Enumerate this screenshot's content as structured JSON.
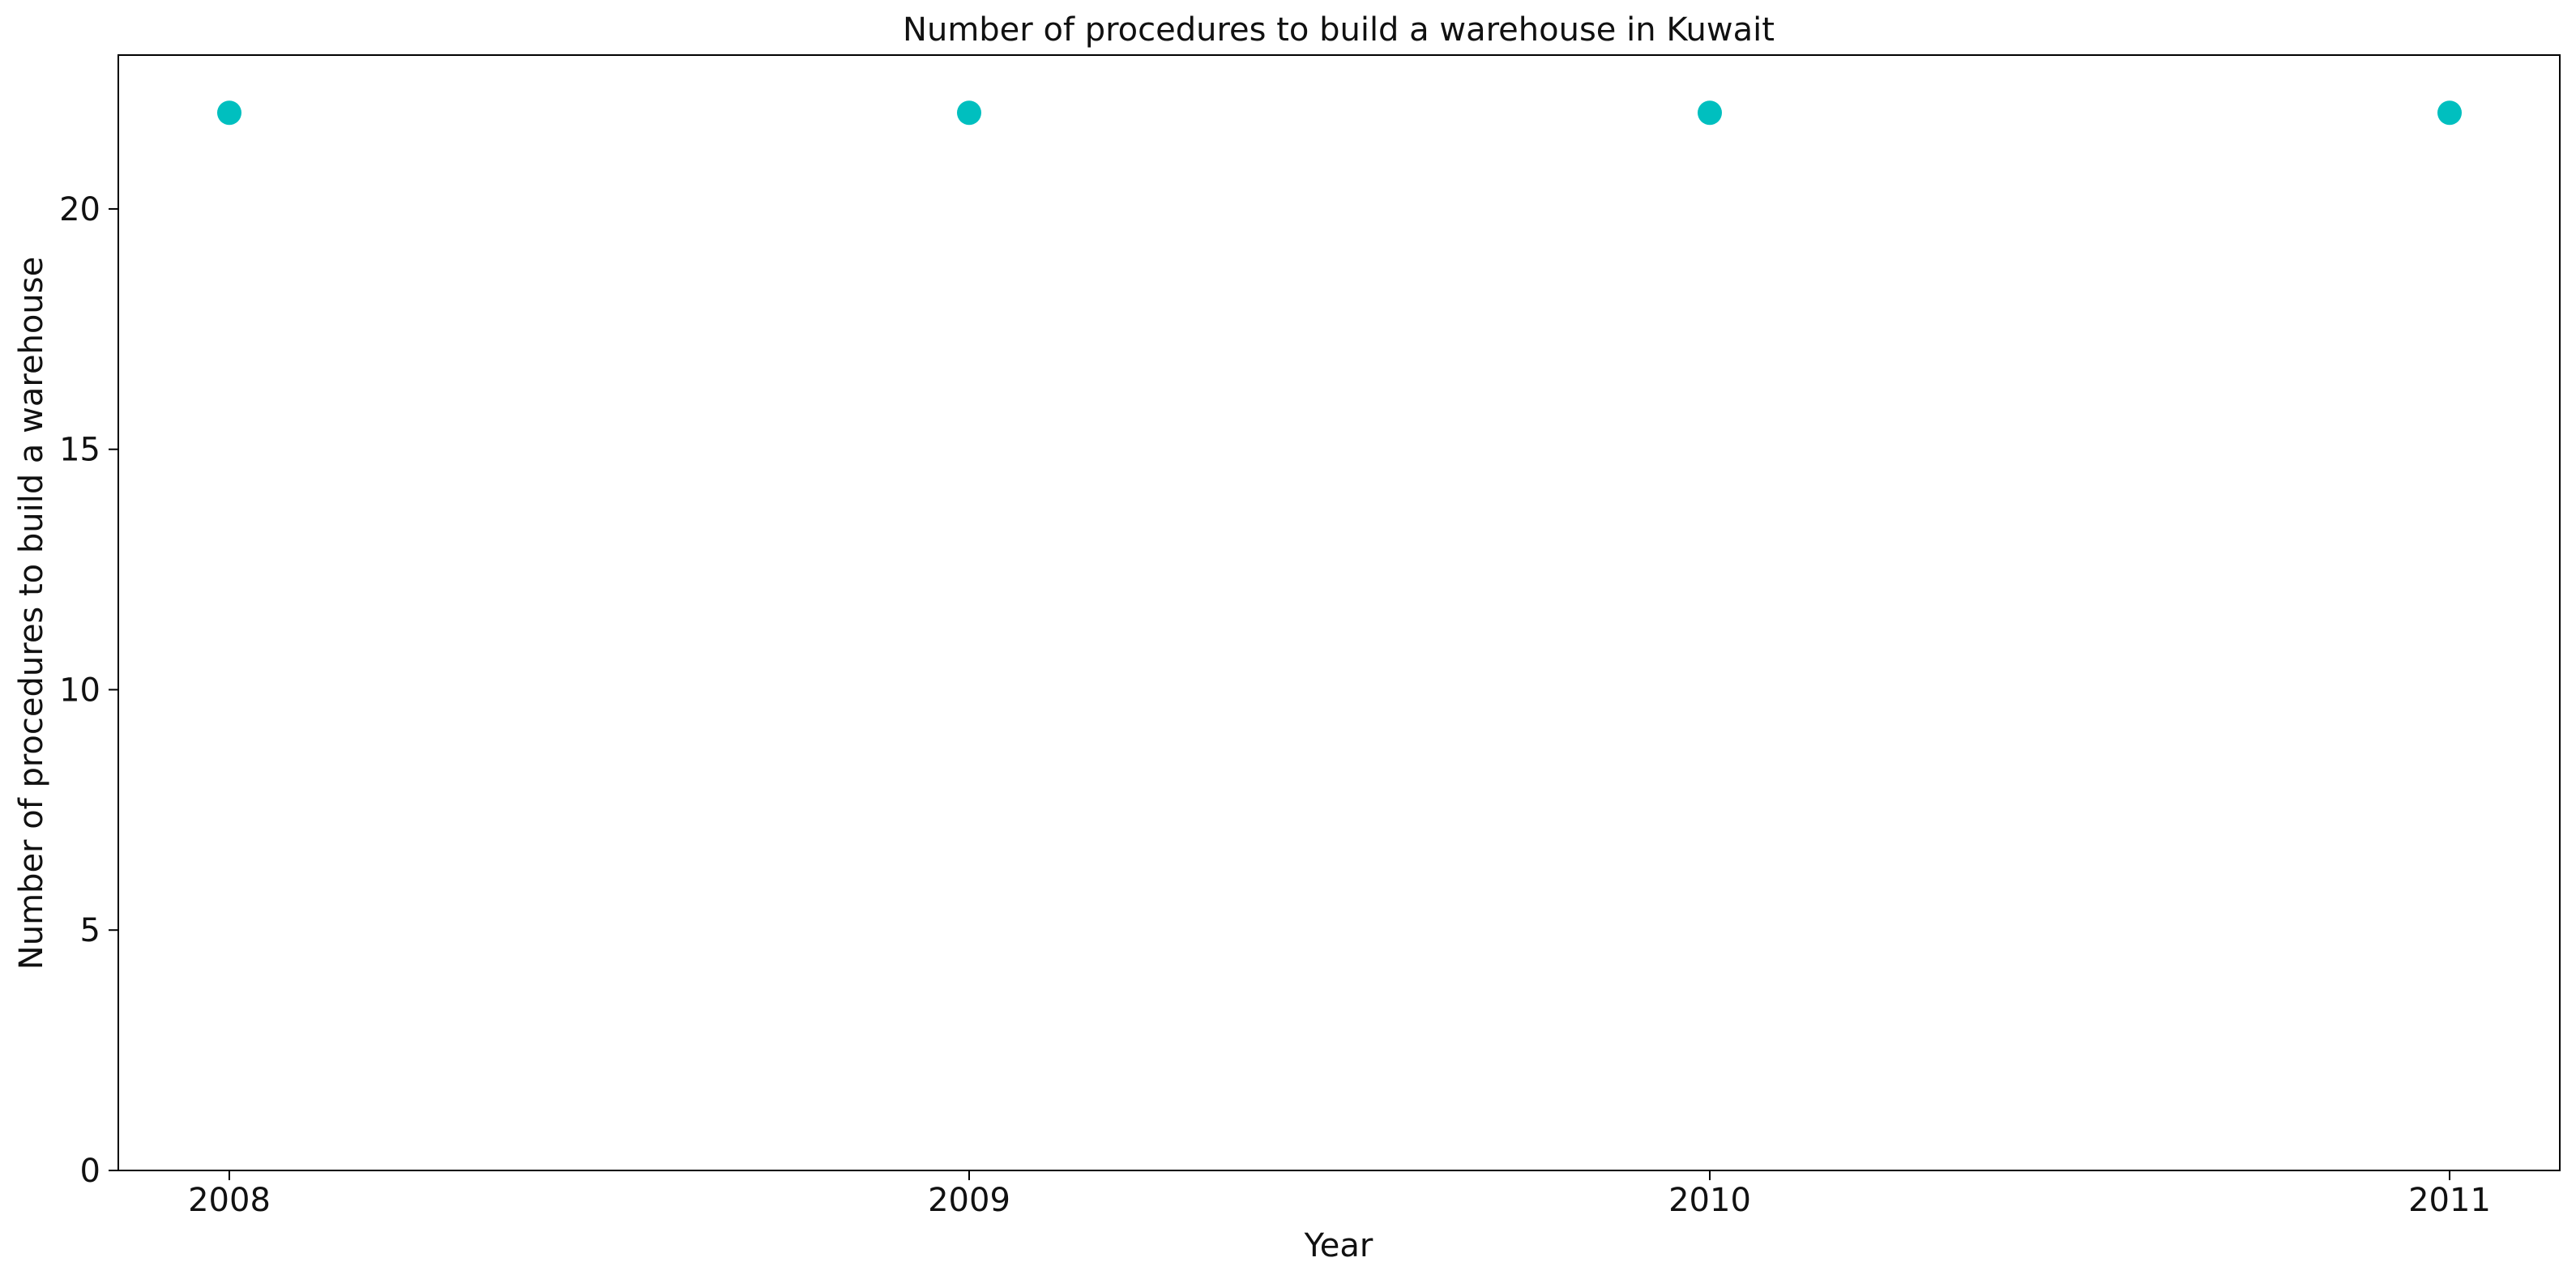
{
  "chart_data": {
    "type": "scatter",
    "title": "Number of procedures to build a warehouse in Kuwait",
    "xlabel": "Year",
    "ylabel": "Number of procedures to build a warehouse",
    "categories": [
      "2008",
      "2009",
      "2010",
      "2011"
    ],
    "series": [
      {
        "values": [
          22,
          22,
          22,
          22
        ],
        "color": "#00bfbf"
      }
    ],
    "ylim": [
      0,
      23.2
    ],
    "yticks": [
      0,
      5,
      10,
      15,
      20
    ],
    "grid": false,
    "legend": false
  }
}
